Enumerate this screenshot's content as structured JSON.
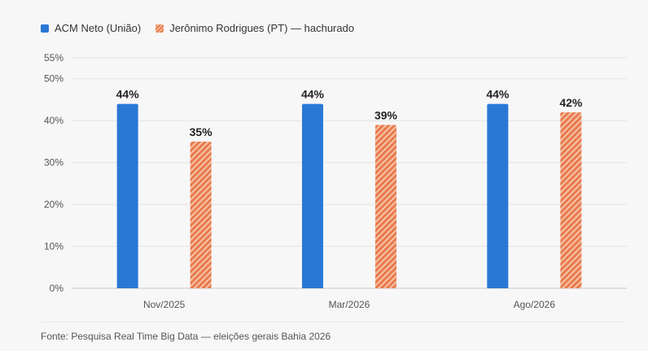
{
  "colors": {
    "acm": "#2a78d6",
    "jer": "#e97a4c",
    "jer_hatch_light": "#f6c3a9",
    "grid": "#e3e3e3",
    "axis": "#c9c9c9",
    "tick_text": "#555555",
    "label_text": "#222222"
  },
  "legend": {
    "items": [
      {
        "label": "ACM Neto (União)",
        "swatch": "acm"
      },
      {
        "label": "Jerônimo Rodrigues (PT) — hachurado",
        "swatch": "jer"
      }
    ]
  },
  "source": "Fonte: Pesquisa Real Time Big Data — eleições gerais Bahia 2026",
  "chart_data": {
    "type": "bar",
    "categories": [
      "Nov/2025",
      "Mar/2026",
      "Ago/2026"
    ],
    "series": [
      {
        "name": "ACM Neto (União)",
        "values": [
          44,
          44,
          44
        ],
        "color": "#2a78d6",
        "pattern": "solid"
      },
      {
        "name": "Jerônimo Rodrigues (PT) — hachurado",
        "values": [
          35,
          39,
          42
        ],
        "color": "#e97a4c",
        "pattern": "hatched"
      }
    ],
    "data_labels": [
      [
        "44%",
        "44%",
        "44%"
      ],
      [
        "35%",
        "39%",
        "42%"
      ]
    ],
    "y_ticks": [
      "0%",
      "10%",
      "20%",
      "30%",
      "40%",
      "50%",
      "55%"
    ],
    "y_tick_values": [
      0,
      10,
      20,
      30,
      40,
      50,
      55
    ],
    "ylim": [
      0,
      55
    ],
    "grid": true,
    "legend_position": "top-left"
  }
}
